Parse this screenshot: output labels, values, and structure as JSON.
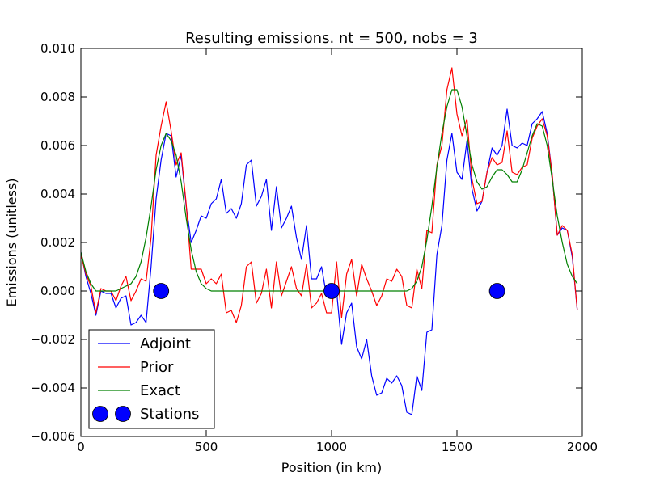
{
  "chart_data": {
    "type": "line",
    "title": "Resulting emissions. nt = 500, nobs = 3",
    "xlabel": "Position (in km)",
    "ylabel": "Emissions (unitless)",
    "xlim": [
      0,
      2000
    ],
    "ylim": [
      -0.006,
      0.01
    ],
    "x_ticks": [
      0,
      500,
      1000,
      1500,
      2000
    ],
    "x_tick_labels": [
      "0",
      "500",
      "1000",
      "1500",
      "2000"
    ],
    "y_ticks": [
      -0.006,
      -0.004,
      -0.002,
      0.0,
      0.002,
      0.004,
      0.006,
      0.008,
      0.01
    ],
    "y_tick_labels": [
      "−0.006",
      "−0.004",
      "−0.002",
      "0.000",
      "0.002",
      "0.004",
      "0.006",
      "0.008",
      "0.010"
    ],
    "grid": false,
    "legend_position": "lower-left",
    "series": [
      {
        "name": "Adjoint",
        "color": "#0000ff",
        "kind": "line",
        "points": [
          [
            0,
            0.0016
          ],
          [
            20,
            0.0006
          ],
          [
            40,
            -0.0001
          ],
          [
            60,
            -0.001
          ],
          [
            80,
            0.0
          ],
          [
            100,
            -0.0001
          ],
          [
            120,
            -0.0001
          ],
          [
            140,
            -0.0007
          ],
          [
            160,
            -0.0003
          ],
          [
            180,
            -0.0002
          ],
          [
            200,
            -0.0014
          ],
          [
            220,
            -0.0013
          ],
          [
            240,
            -0.001
          ],
          [
            260,
            -0.0013
          ],
          [
            280,
            0.001
          ],
          [
            300,
            0.0038
          ],
          [
            320,
            0.0054
          ],
          [
            340,
            0.0065
          ],
          [
            360,
            0.0064
          ],
          [
            380,
            0.0047
          ],
          [
            400,
            0.0056
          ],
          [
            420,
            0.0035
          ],
          [
            440,
            0.002
          ],
          [
            460,
            0.0025
          ],
          [
            480,
            0.0031
          ],
          [
            500,
            0.003
          ],
          [
            520,
            0.0036
          ],
          [
            540,
            0.0038
          ],
          [
            560,
            0.0046
          ],
          [
            580,
            0.0032
          ],
          [
            600,
            0.0034
          ],
          [
            620,
            0.003
          ],
          [
            640,
            0.0036
          ],
          [
            660,
            0.0052
          ],
          [
            680,
            0.0054
          ],
          [
            700,
            0.0035
          ],
          [
            720,
            0.0039
          ],
          [
            740,
            0.0046
          ],
          [
            760,
            0.0025
          ],
          [
            780,
            0.0043
          ],
          [
            800,
            0.0026
          ],
          [
            820,
            0.003
          ],
          [
            840,
            0.0035
          ],
          [
            860,
            0.0022
          ],
          [
            880,
            0.0013
          ],
          [
            900,
            0.0027
          ],
          [
            920,
            0.0005
          ],
          [
            940,
            0.0005
          ],
          [
            960,
            0.001
          ],
          [
            980,
            -0.0002
          ],
          [
            1000,
            0.0
          ],
          [
            1020,
            0.0
          ],
          [
            1040,
            -0.0022
          ],
          [
            1060,
            -0.0009
          ],
          [
            1080,
            -0.0005
          ],
          [
            1100,
            -0.0023
          ],
          [
            1120,
            -0.0028
          ],
          [
            1140,
            -0.002
          ],
          [
            1160,
            -0.0035
          ],
          [
            1180,
            -0.0043
          ],
          [
            1200,
            -0.0042
          ],
          [
            1220,
            -0.0036
          ],
          [
            1240,
            -0.0038
          ],
          [
            1260,
            -0.0035
          ],
          [
            1280,
            -0.0039
          ],
          [
            1300,
            -0.005
          ],
          [
            1320,
            -0.0051
          ],
          [
            1340,
            -0.0035
          ],
          [
            1360,
            -0.0041
          ],
          [
            1380,
            -0.0017
          ],
          [
            1400,
            -0.0016
          ],
          [
            1420,
            0.0015
          ],
          [
            1440,
            0.0027
          ],
          [
            1460,
            0.0054
          ],
          [
            1480,
            0.0065
          ],
          [
            1500,
            0.0049
          ],
          [
            1520,
            0.0046
          ],
          [
            1540,
            0.0062
          ],
          [
            1560,
            0.0042
          ],
          [
            1580,
            0.0033
          ],
          [
            1600,
            0.0037
          ],
          [
            1620,
            0.0049
          ],
          [
            1640,
            0.0059
          ],
          [
            1660,
            0.0056
          ],
          [
            1680,
            0.006
          ],
          [
            1700,
            0.0075
          ],
          [
            1720,
            0.006
          ],
          [
            1740,
            0.0059
          ],
          [
            1760,
            0.0061
          ],
          [
            1780,
            0.006
          ],
          [
            1800,
            0.0069
          ],
          [
            1820,
            0.0071
          ],
          [
            1840,
            0.0074
          ],
          [
            1860,
            0.0065
          ],
          [
            1880,
            0.0048
          ],
          [
            1900,
            0.0023
          ],
          [
            1920,
            0.0026
          ],
          [
            1940,
            0.0025
          ],
          [
            1960,
            0.0014
          ],
          [
            1980,
            -0.0008
          ]
        ]
      },
      {
        "name": "Prior",
        "color": "#ff0000",
        "kind": "line",
        "points": [
          [
            0,
            0.0015
          ],
          [
            20,
            0.0007
          ],
          [
            40,
            0.0002
          ],
          [
            60,
            -0.0009
          ],
          [
            80,
            0.0001
          ],
          [
            100,
            0.0
          ],
          [
            120,
            0.0
          ],
          [
            140,
            -0.0004
          ],
          [
            160,
            0.0002
          ],
          [
            180,
            0.0006
          ],
          [
            200,
            -0.0004
          ],
          [
            220,
            0.0
          ],
          [
            240,
            0.0005
          ],
          [
            260,
            0.0004
          ],
          [
            280,
            0.0022
          ],
          [
            300,
            0.0056
          ],
          [
            320,
            0.0068
          ],
          [
            340,
            0.0078
          ],
          [
            360,
            0.0066
          ],
          [
            380,
            0.0052
          ],
          [
            400,
            0.0057
          ],
          [
            420,
            0.0036
          ],
          [
            440,
            0.0009
          ],
          [
            460,
            0.0009
          ],
          [
            480,
            0.0009
          ],
          [
            500,
            0.0003
          ],
          [
            520,
            0.0005
          ],
          [
            540,
            0.0003
          ],
          [
            560,
            0.0007
          ],
          [
            580,
            -0.0009
          ],
          [
            600,
            -0.0008
          ],
          [
            620,
            -0.0013
          ],
          [
            640,
            -0.0006
          ],
          [
            660,
            0.001
          ],
          [
            680,
            0.0012
          ],
          [
            700,
            -0.0005
          ],
          [
            720,
            -0.0001
          ],
          [
            740,
            0.0009
          ],
          [
            760,
            -0.0007
          ],
          [
            780,
            0.0012
          ],
          [
            800,
            -0.0002
          ],
          [
            820,
            0.0004
          ],
          [
            840,
            0.001
          ],
          [
            860,
            0.0001
          ],
          [
            880,
            -0.0002
          ],
          [
            900,
            0.0011
          ],
          [
            920,
            -0.0007
          ],
          [
            940,
            -0.0005
          ],
          [
            960,
            -0.0001
          ],
          [
            980,
            -0.0009
          ],
          [
            1000,
            -0.0009
          ],
          [
            1020,
            0.0012
          ],
          [
            1040,
            -0.0011
          ],
          [
            1060,
            0.0007
          ],
          [
            1080,
            0.0013
          ],
          [
            1100,
            -0.0002
          ],
          [
            1120,
            0.0011
          ],
          [
            1140,
            0.0005
          ],
          [
            1160,
            0.0
          ],
          [
            1180,
            -0.0006
          ],
          [
            1200,
            -0.0002
          ],
          [
            1220,
            0.0005
          ],
          [
            1240,
            0.0004
          ],
          [
            1260,
            0.0009
          ],
          [
            1280,
            0.0006
          ],
          [
            1300,
            -0.0006
          ],
          [
            1320,
            -0.0007
          ],
          [
            1340,
            0.0009
          ],
          [
            1360,
            0.0001
          ],
          [
            1380,
            0.0025
          ],
          [
            1400,
            0.0024
          ],
          [
            1420,
            0.0052
          ],
          [
            1440,
            0.006
          ],
          [
            1460,
            0.0083
          ],
          [
            1480,
            0.0092
          ],
          [
            1500,
            0.0073
          ],
          [
            1520,
            0.0064
          ],
          [
            1540,
            0.0071
          ],
          [
            1560,
            0.0046
          ],
          [
            1580,
            0.0036
          ],
          [
            1600,
            0.0037
          ],
          [
            1620,
            0.0049
          ],
          [
            1640,
            0.0055
          ],
          [
            1660,
            0.0052
          ],
          [
            1680,
            0.0053
          ],
          [
            1700,
            0.0066
          ],
          [
            1720,
            0.0049
          ],
          [
            1740,
            0.0048
          ],
          [
            1760,
            0.0051
          ],
          [
            1780,
            0.0052
          ],
          [
            1800,
            0.0063
          ],
          [
            1820,
            0.0068
          ],
          [
            1840,
            0.0071
          ],
          [
            1860,
            0.0064
          ],
          [
            1880,
            0.0048
          ],
          [
            1900,
            0.0023
          ],
          [
            1920,
            0.0027
          ],
          [
            1940,
            0.0025
          ],
          [
            1960,
            0.0015
          ],
          [
            1980,
            -0.0008
          ]
        ]
      },
      {
        "name": "Exact",
        "color": "#008000",
        "kind": "line",
        "points": [
          [
            0,
            0.0016
          ],
          [
            20,
            0.0008
          ],
          [
            40,
            0.0003
          ],
          [
            60,
            0.0
          ],
          [
            80,
            0.0
          ],
          [
            100,
            0.0
          ],
          [
            120,
            0.0
          ],
          [
            140,
            0.0
          ],
          [
            160,
            0.0001
          ],
          [
            180,
            0.0002
          ],
          [
            200,
            0.0003
          ],
          [
            220,
            0.0006
          ],
          [
            240,
            0.0012
          ],
          [
            260,
            0.0022
          ],
          [
            280,
            0.0035
          ],
          [
            300,
            0.005
          ],
          [
            320,
            0.006
          ],
          [
            340,
            0.0065
          ],
          [
            360,
            0.0062
          ],
          [
            380,
            0.0056
          ],
          [
            400,
            0.0045
          ],
          [
            420,
            0.003
          ],
          [
            440,
            0.0017
          ],
          [
            460,
            0.0008
          ],
          [
            480,
            0.0003
          ],
          [
            500,
            0.0001
          ],
          [
            520,
            0.0
          ],
          [
            540,
            0.0
          ],
          [
            600,
            0.0
          ],
          [
            800,
            0.0
          ],
          [
            1000,
            0.0
          ],
          [
            1200,
            0.0
          ],
          [
            1260,
            0.0
          ],
          [
            1300,
            0.0
          ],
          [
            1320,
            0.0001
          ],
          [
            1340,
            0.0004
          ],
          [
            1360,
            0.001
          ],
          [
            1380,
            0.0021
          ],
          [
            1400,
            0.0035
          ],
          [
            1420,
            0.0051
          ],
          [
            1440,
            0.0065
          ],
          [
            1460,
            0.0076
          ],
          [
            1480,
            0.0083
          ],
          [
            1500,
            0.0083
          ],
          [
            1520,
            0.0076
          ],
          [
            1540,
            0.0064
          ],
          [
            1560,
            0.0052
          ],
          [
            1580,
            0.0045
          ],
          [
            1600,
            0.0042
          ],
          [
            1620,
            0.0043
          ],
          [
            1640,
            0.0047
          ],
          [
            1660,
            0.005
          ],
          [
            1680,
            0.005
          ],
          [
            1700,
            0.0048
          ],
          [
            1720,
            0.0045
          ],
          [
            1740,
            0.0045
          ],
          [
            1760,
            0.005
          ],
          [
            1780,
            0.0057
          ],
          [
            1800,
            0.0064
          ],
          [
            1820,
            0.0069
          ],
          [
            1840,
            0.0068
          ],
          [
            1860,
            0.006
          ],
          [
            1880,
            0.0046
          ],
          [
            1900,
            0.0031
          ],
          [
            1920,
            0.002
          ],
          [
            1940,
            0.0011
          ],
          [
            1960,
            0.0006
          ],
          [
            1980,
            0.0003
          ]
        ]
      },
      {
        "name": "Stations",
        "color": "#0000ff",
        "kind": "markers",
        "points": [
          [
            320,
            0.0
          ],
          [
            1000,
            0.0
          ],
          [
            1660,
            0.0
          ]
        ]
      }
    ]
  }
}
